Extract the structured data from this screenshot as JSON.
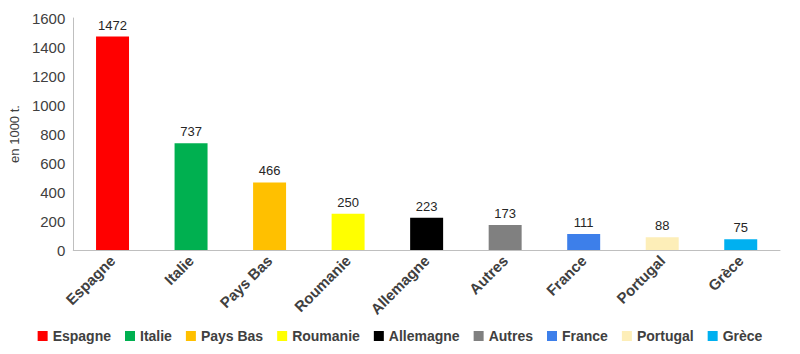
{
  "chart_data": {
    "type": "bar",
    "ylabel": "en 1000 t.",
    "categories": [
      "Espagne",
      "Italie",
      "Pays Bas",
      "Roumanie",
      "Allemagne",
      "Autres",
      "France",
      "Portugal",
      "Grèce"
    ],
    "values": [
      1472,
      737,
      466,
      250,
      223,
      173,
      111,
      88,
      75
    ],
    "colors": [
      "#ff0000",
      "#00b050",
      "#ffc000",
      "#ffff00",
      "#000000",
      "#808080",
      "#3d7fea",
      "#fdeeb8",
      "#00b0f0"
    ],
    "ylim": [
      0,
      1600
    ],
    "yticks": [
      0,
      200,
      400,
      600,
      800,
      1000,
      1200,
      1400,
      1600
    ],
    "grid": false,
    "data_labels": true,
    "legend": "bottom"
  }
}
